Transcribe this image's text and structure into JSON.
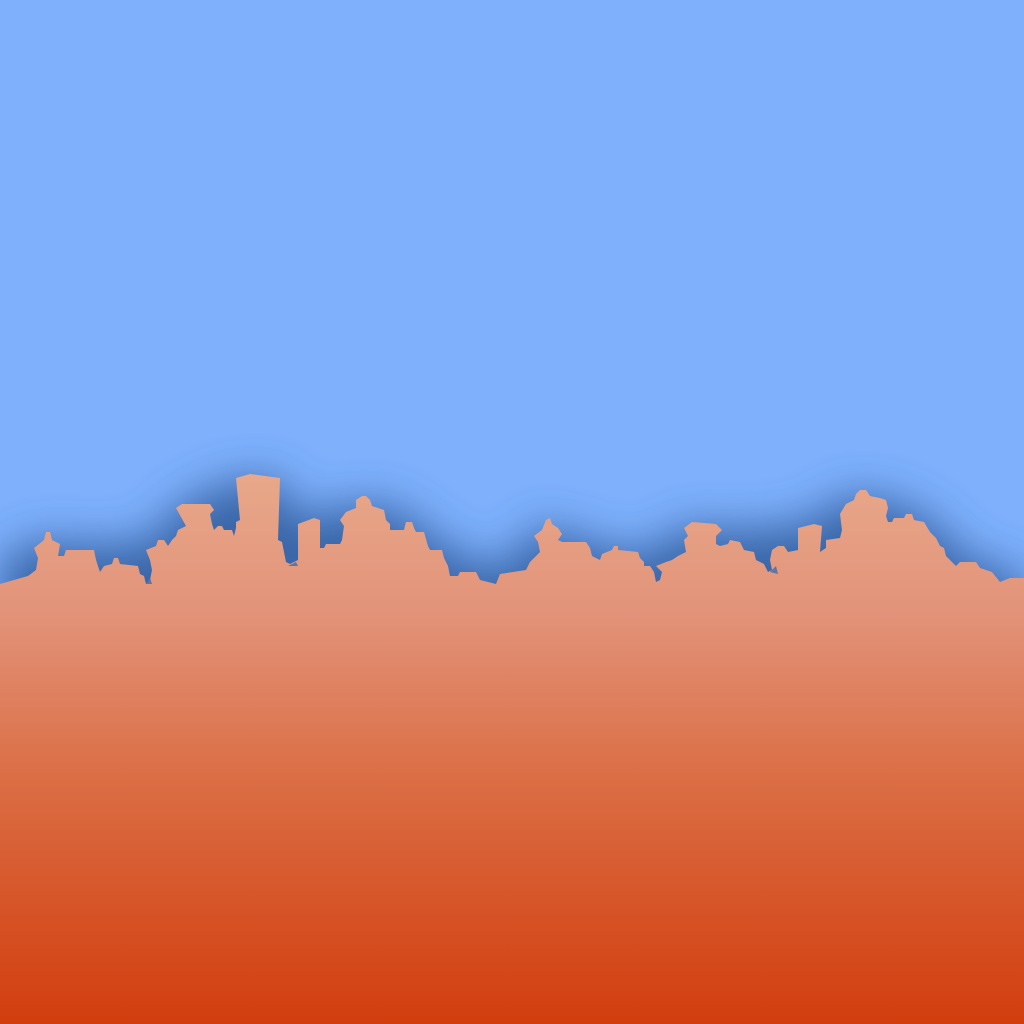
{
  "scene": {
    "description_visible_text": "",
    "colors": {
      "sky": "#7eb0fc",
      "skyline_shadow": "#3f6aa6",
      "ground_top": "#e8a88a",
      "ground_bottom": "#d33f0e"
    },
    "elements": [
      "sky",
      "city-skyline-silhouette",
      "ground-gradient"
    ]
  }
}
